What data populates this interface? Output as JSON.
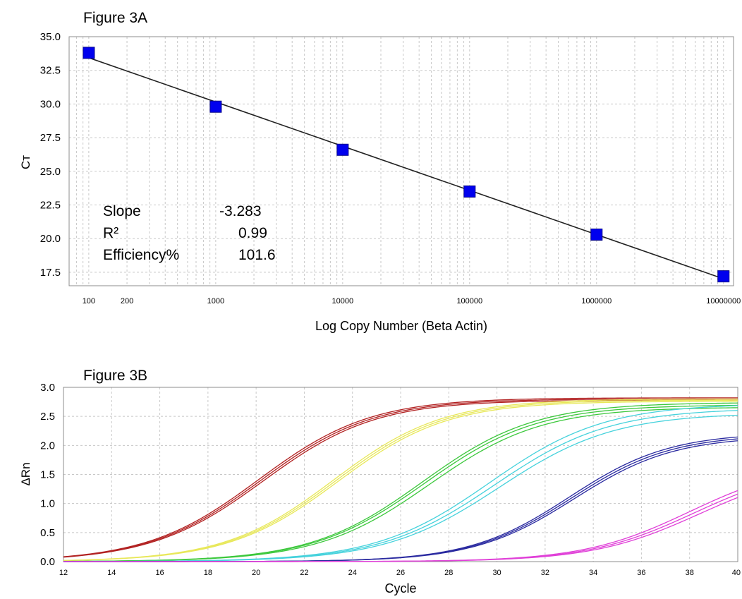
{
  "chart_data": [
    {
      "id": "3A",
      "type": "scatter",
      "title": "Figure 3A",
      "xlabel": "Log Copy Number (Beta Actin)",
      "ylabel": "Cт",
      "xscale": "log",
      "xlim": [
        70,
        12000000
      ],
      "ylim": [
        16.5,
        35.0
      ],
      "yticks": [
        "35.0",
        "32.5",
        "30.0",
        "27.5",
        "25.0",
        "22.5",
        "20.0",
        "17.5"
      ],
      "xticks": [
        {
          "value": 100,
          "label": "100"
        },
        {
          "value": 200,
          "label": "200"
        },
        {
          "value": 1000,
          "label": "1000"
        },
        {
          "value": 10000,
          "label": "10000"
        },
        {
          "value": 100000,
          "label": "100000"
        },
        {
          "value": 1000000,
          "label": "1000000"
        },
        {
          "value": 10000000,
          "label": "10000000"
        }
      ],
      "grid": true,
      "series": [
        {
          "color": "#0000ee",
          "points": [
            {
              "x": 100,
              "y": 33.8
            },
            {
              "x": 1000,
              "y": 29.8
            },
            {
              "x": 10000,
              "y": 26.6
            },
            {
              "x": 100000,
              "y": 23.5
            },
            {
              "x": 1000000,
              "y": 20.3
            },
            {
              "x": 10000000,
              "y": 17.2
            }
          ]
        }
      ],
      "fit_line": {
        "slope": -3.283,
        "intercept": 40.0,
        "color": "#222222"
      },
      "stats": [
        {
          "label": "Slope",
          "value": "-3.283"
        },
        {
          "label": "R²",
          "value": "0.99"
        },
        {
          "label": "Efficiency%",
          "value": "101.6"
        }
      ]
    },
    {
      "id": "3B",
      "type": "line",
      "title": "Figure 3B",
      "xlabel": "Cycle",
      "ylabel": "ΔRn",
      "xlim": [
        12,
        40
      ],
      "ylim": [
        0.0,
        3.0
      ],
      "xticks": [
        "12",
        "14",
        "16",
        "18",
        "20",
        "22",
        "24",
        "26",
        "28",
        "30",
        "32",
        "34",
        "36",
        "38",
        "40"
      ],
      "yticks": [
        "3.0",
        "2.5",
        "2.0",
        "1.5",
        "1.0",
        "0.5",
        "0.0"
      ],
      "grid": true,
      "series": [
        {
          "color": "#b22222",
          "curves": [
            {
              "plateau": 2.82,
              "midpoint": 20.1,
              "steepness": 0.43
            },
            {
              "plateau": 2.8,
              "midpoint": 20.2,
              "steepness": 0.43
            },
            {
              "plateau": 2.78,
              "midpoint": 20.3,
              "steepness": 0.43
            }
          ]
        },
        {
          "color": "#e8e85a",
          "curves": [
            {
              "plateau": 2.8,
              "midpoint": 23.2,
              "steepness": 0.44
            },
            {
              "plateau": 2.78,
              "midpoint": 23.3,
              "steepness": 0.44
            },
            {
              "plateau": 2.76,
              "midpoint": 23.4,
              "steepness": 0.44
            }
          ]
        },
        {
          "color": "#3cc83c",
          "curves": [
            {
              "plateau": 2.74,
              "midpoint": 26.9,
              "steepness": 0.43
            },
            {
              "plateau": 2.7,
              "midpoint": 27.0,
              "steepness": 0.43
            },
            {
              "plateau": 2.66,
              "midpoint": 27.2,
              "steepness": 0.43
            }
          ]
        },
        {
          "color": "#46d2dc",
          "curves": [
            {
              "plateau": 2.72,
              "midpoint": 29.7,
              "steepness": 0.42
            },
            {
              "plateau": 2.64,
              "midpoint": 29.9,
              "steepness": 0.42
            },
            {
              "plateau": 2.56,
              "midpoint": 30.1,
              "steepness": 0.42
            }
          ]
        },
        {
          "color": "#2a2aa0",
          "curves": [
            {
              "plateau": 2.22,
              "midpoint": 33.0,
              "steepness": 0.48
            },
            {
              "plateau": 2.19,
              "midpoint": 33.1,
              "steepness": 0.48
            },
            {
              "plateau": 2.16,
              "midpoint": 33.2,
              "steepness": 0.48
            }
          ]
        },
        {
          "color": "#e040d8",
          "curves": [
            {
              "plateau": 1.72,
              "midpoint": 38.0,
              "steepness": 0.45
            },
            {
              "plateau": 1.68,
              "midpoint": 38.2,
              "steepness": 0.45
            },
            {
              "plateau": 1.64,
              "midpoint": 38.4,
              "steepness": 0.45
            }
          ]
        }
      ]
    }
  ]
}
